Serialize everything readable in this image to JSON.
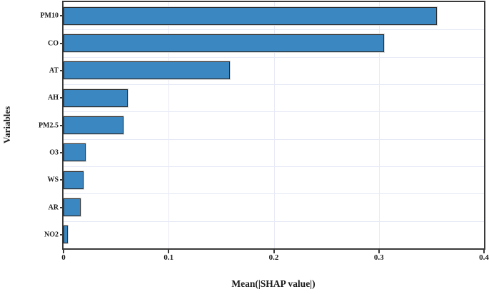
{
  "chart_data": {
    "type": "bar",
    "orientation": "horizontal",
    "title": "",
    "xlabel": "Mean(|SHAP value|)",
    "ylabel": "Variables",
    "categories": [
      "PM10",
      "CO",
      "AT",
      "AH",
      "PM2.5",
      "O3",
      "WS",
      "AR",
      "NO2"
    ],
    "values": [
      0.355,
      0.305,
      0.158,
      0.061,
      0.057,
      0.021,
      0.019,
      0.016,
      0.004
    ],
    "xlim": [
      0,
      0.4
    ],
    "xticks": [
      0,
      0.1,
      0.2,
      0.3,
      0.4
    ],
    "xtick_labels": [
      "0",
      "0.1",
      "0.2",
      "0.3",
      "0.4"
    ],
    "grid": true,
    "legend": false,
    "bar_color": "#3a87c2",
    "bar_edge_color": "#2d2d2d",
    "grid_color": "#e7eaf6",
    "spine_color": "#3a3a3a"
  }
}
